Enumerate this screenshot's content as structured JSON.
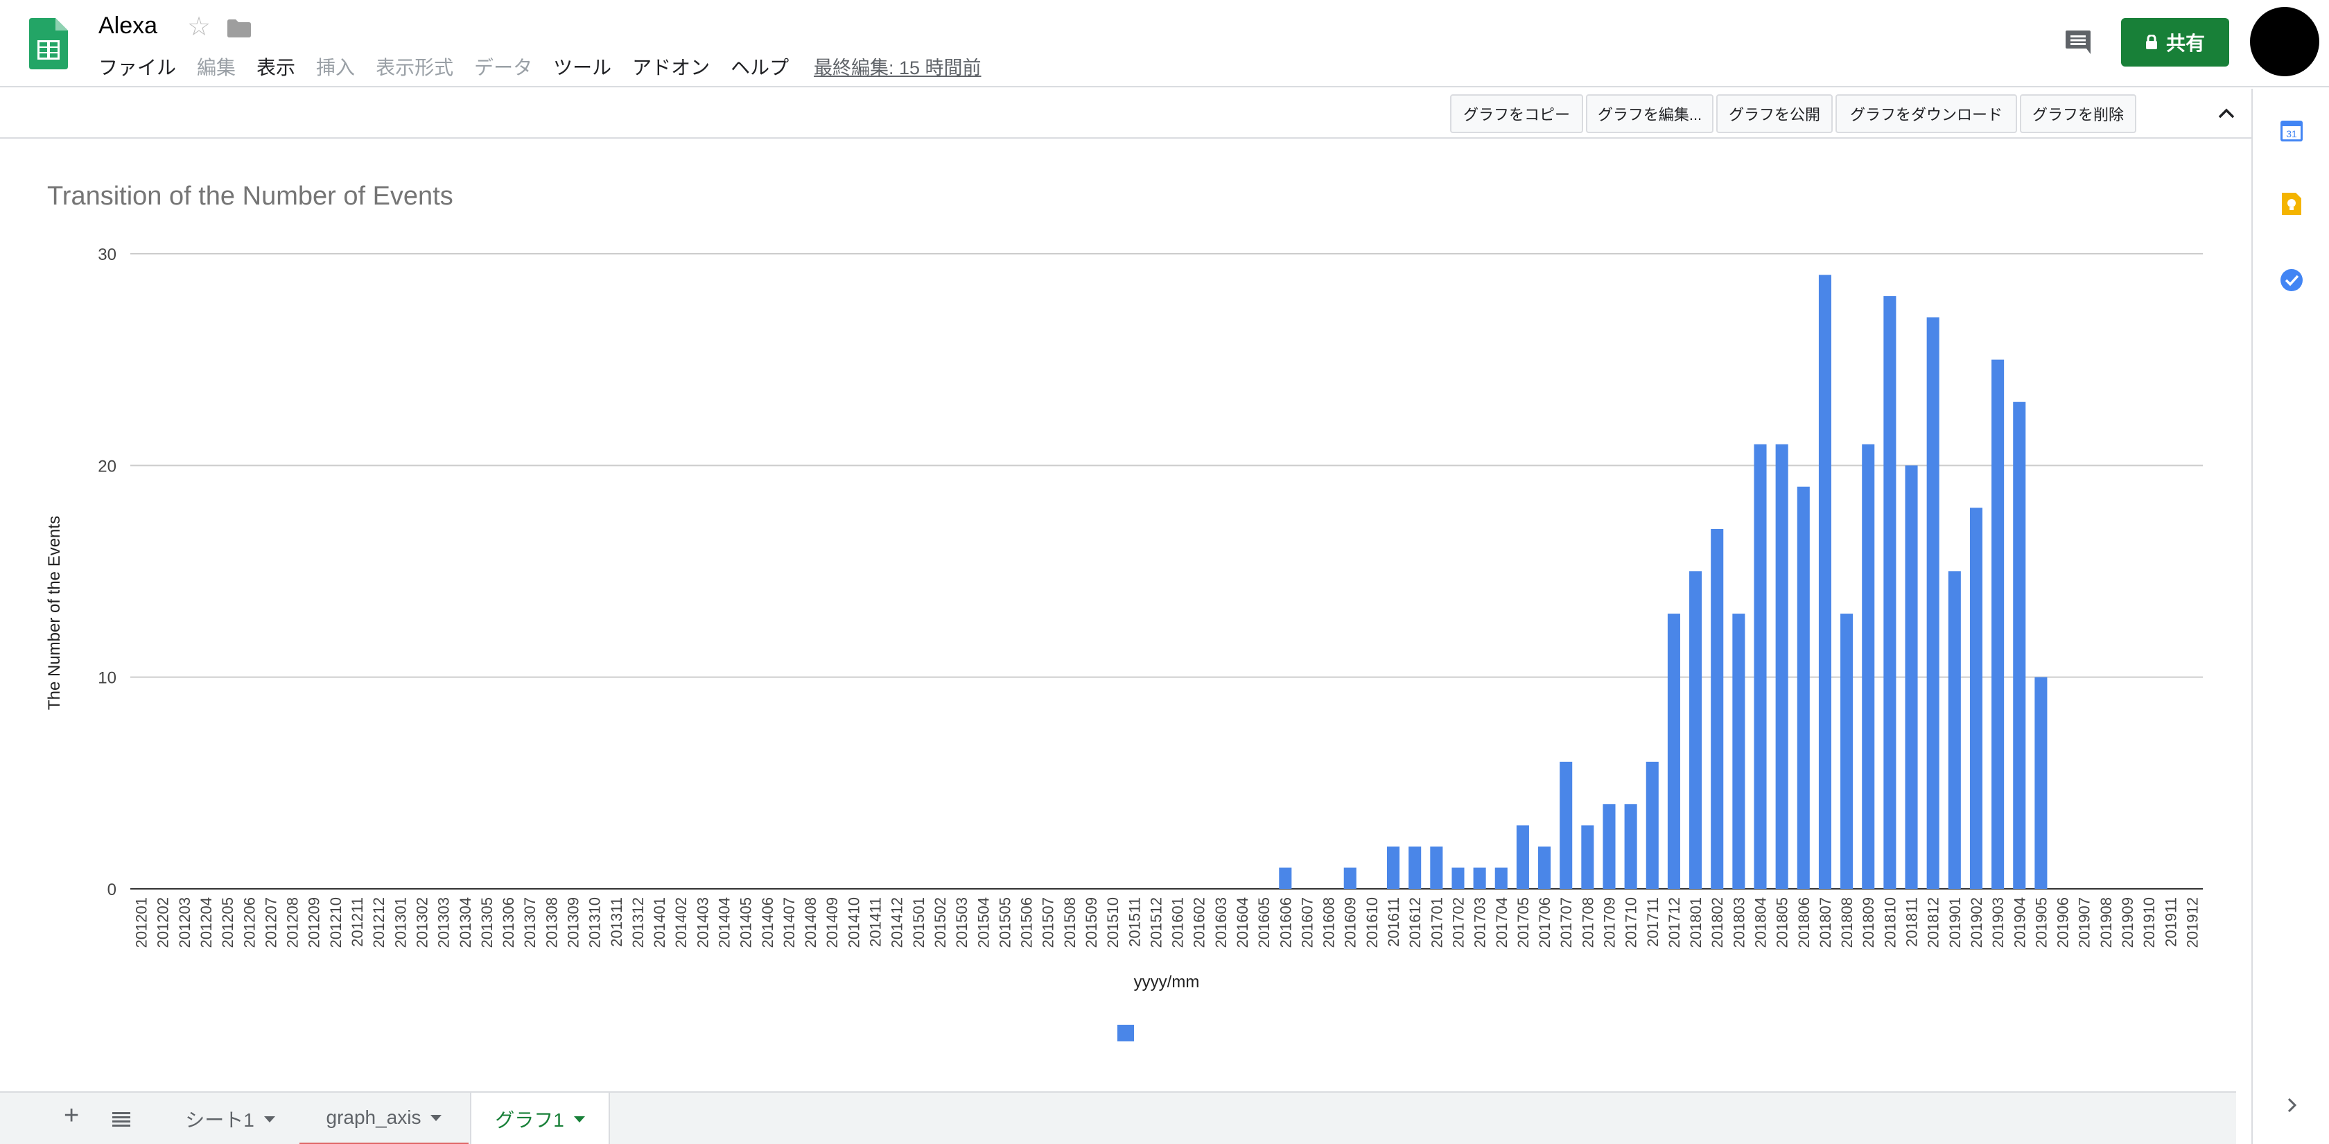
{
  "app": {
    "title": "Alexa",
    "menu": [
      "ファイル",
      "編集",
      "表示",
      "挿入",
      "表示形式",
      "データ",
      "ツール",
      "アドオン",
      "ヘルプ"
    ],
    "menu_disabled": [
      false,
      true,
      false,
      true,
      true,
      true,
      false,
      false,
      false
    ],
    "last_edit": "最終編集: 15 時間前",
    "share_label": "共有",
    "brand_color": "#188038"
  },
  "chart_toolbar": {
    "buttons": [
      "グラフをコピー",
      "グラフを編集...",
      "グラフを公開",
      "グラフをダウンロード",
      "グラフを削除"
    ]
  },
  "side_panel": {
    "icons": [
      "calendar-icon",
      "keep-icon",
      "tasks-icon"
    ],
    "calendar_label": "31"
  },
  "sheets": {
    "tabs": [
      "シート1",
      "graph_axis",
      "グラフ1"
    ],
    "active": "グラフ1"
  },
  "chart_data": {
    "type": "bar",
    "title": "Transition of the Number of Events",
    "xlabel": "yyyy/mm",
    "ylabel": "The Number of the Events",
    "ylim": [
      0,
      30
    ],
    "yticks": [
      0,
      10,
      20,
      30
    ],
    "grid": true,
    "bar_color": "#4a86e8",
    "legend_position": "bottom",
    "categories": [
      "201201",
      "201202",
      "201203",
      "201204",
      "201205",
      "201206",
      "201207",
      "201208",
      "201209",
      "201210",
      "201211",
      "201212",
      "201301",
      "201302",
      "201303",
      "201304",
      "201305",
      "201306",
      "201307",
      "201308",
      "201309",
      "201310",
      "201311",
      "201312",
      "201401",
      "201402",
      "201403",
      "201404",
      "201405",
      "201406",
      "201407",
      "201408",
      "201409",
      "201410",
      "201411",
      "201412",
      "201501",
      "201502",
      "201503",
      "201504",
      "201505",
      "201506",
      "201507",
      "201508",
      "201509",
      "201510",
      "201511",
      "201512",
      "201601",
      "201602",
      "201603",
      "201604",
      "201605",
      "201606",
      "201607",
      "201608",
      "201609",
      "201610",
      "201611",
      "201612",
      "201701",
      "201702",
      "201703",
      "201704",
      "201705",
      "201706",
      "201707",
      "201708",
      "201709",
      "201710",
      "201711",
      "201712",
      "201801",
      "201802",
      "201803",
      "201804",
      "201805",
      "201806",
      "201807",
      "201808",
      "201809",
      "201810",
      "201811",
      "201812",
      "201901",
      "201902",
      "201903",
      "201904",
      "201905",
      "201906",
      "201907",
      "201908",
      "201909",
      "201910",
      "201911",
      "201912"
    ],
    "values": [
      0,
      0,
      0,
      0,
      0,
      0,
      0,
      0,
      0,
      0,
      0,
      0,
      0,
      0,
      0,
      0,
      0,
      0,
      0,
      0,
      0,
      0,
      0,
      0,
      0,
      0,
      0,
      0,
      0,
      0,
      0,
      0,
      0,
      0,
      0,
      0,
      0,
      0,
      0,
      0,
      0,
      0,
      0,
      0,
      0,
      0,
      0,
      0,
      0,
      0,
      0,
      0,
      0,
      1,
      0,
      0,
      1,
      0,
      2,
      2,
      2,
      1,
      1,
      1,
      3,
      2,
      6,
      3,
      4,
      4,
      6,
      13,
      15,
      17,
      13,
      21,
      21,
      19,
      29,
      13,
      21,
      28,
      20,
      27,
      15,
      18,
      25,
      23,
      10,
      0,
      0,
      0,
      0,
      0,
      0,
      0
    ]
  }
}
